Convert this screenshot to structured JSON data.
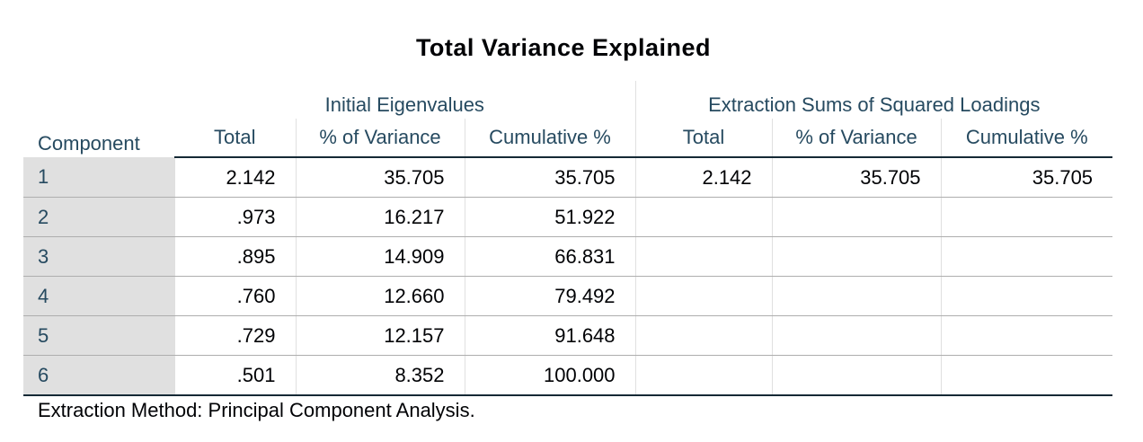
{
  "title": "Total Variance Explained",
  "table": {
    "row_header": "Component",
    "groups": [
      "Initial Eigenvalues",
      "Extraction Sums of Squared Loadings"
    ],
    "columns": [
      "Total",
      "% of Variance",
      "Cumulative %",
      "Total",
      "% of Variance",
      "Cumulative %"
    ],
    "rows": [
      {
        "component": "1",
        "initial": [
          "2.142",
          "35.705",
          "35.705"
        ],
        "extraction": [
          "2.142",
          "35.705",
          "35.705"
        ]
      },
      {
        "component": "2",
        "initial": [
          ".973",
          "16.217",
          "51.922"
        ],
        "extraction": [
          "",
          "",
          ""
        ]
      },
      {
        "component": "3",
        "initial": [
          ".895",
          "14.909",
          "66.831"
        ],
        "extraction": [
          "",
          "",
          ""
        ]
      },
      {
        "component": "4",
        "initial": [
          ".760",
          "12.660",
          "79.492"
        ],
        "extraction": [
          "",
          "",
          ""
        ]
      },
      {
        "component": "5",
        "initial": [
          ".729",
          "12.157",
          "91.648"
        ],
        "extraction": [
          "",
          "",
          ""
        ]
      },
      {
        "component": "6",
        "initial": [
          ".501",
          "8.352",
          "100.000"
        ],
        "extraction": [
          "",
          "",
          ""
        ]
      }
    ]
  },
  "footnote": "Extraction Method: Principal Component Analysis."
}
